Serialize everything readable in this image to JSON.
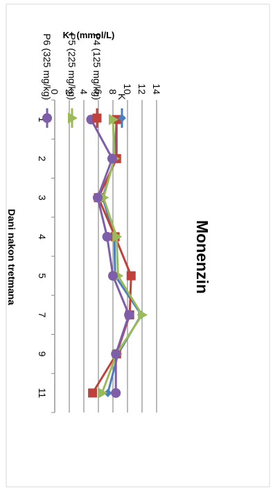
{
  "chart_data": {
    "type": "line",
    "title": "Monenzin",
    "xlabel": "Dani nakon tretmana",
    "ylabel": "K⁺ (mmol/L)",
    "categories": [
      "1",
      "2",
      "3",
      "4",
      "5",
      "7",
      "9",
      "11"
    ],
    "ylim": [
      0,
      14
    ],
    "yticks": [
      "0",
      "2",
      "4",
      "6",
      "8",
      "10",
      "12",
      "14"
    ],
    "grid": true,
    "legend_position": "right",
    "orientation": "rotated 90° clockwise",
    "series": [
      {
        "name": "K",
        "color": "#4a7ebf",
        "marker": "diamond",
        "values": [
          8.5,
          8.2,
          6.6,
          8.2,
          8.3,
          11.9,
          8.7,
          7.3
        ]
      },
      {
        "name": "P4 (125 mg/kg)",
        "color": "#c0413b",
        "marker": "square",
        "values": [
          8.5,
          8.5,
          6.0,
          8.3,
          10.5,
          10.3,
          8.5,
          5.2
        ]
      },
      {
        "name": "P5 (225 mg/kg)",
        "color": "#9bbb59",
        "marker": "triangle",
        "values": [
          8.0,
          8.2,
          6.7,
          8.5,
          8.7,
          12.0,
          8.5,
          6.5
        ]
      },
      {
        "name": "P6 (325 mg/kg)",
        "color": "#7e5ea8",
        "marker": "circle",
        "values": [
          5.0,
          7.9,
          5.9,
          7.2,
          8.0,
          10.2,
          8.4,
          8.4
        ]
      }
    ]
  }
}
